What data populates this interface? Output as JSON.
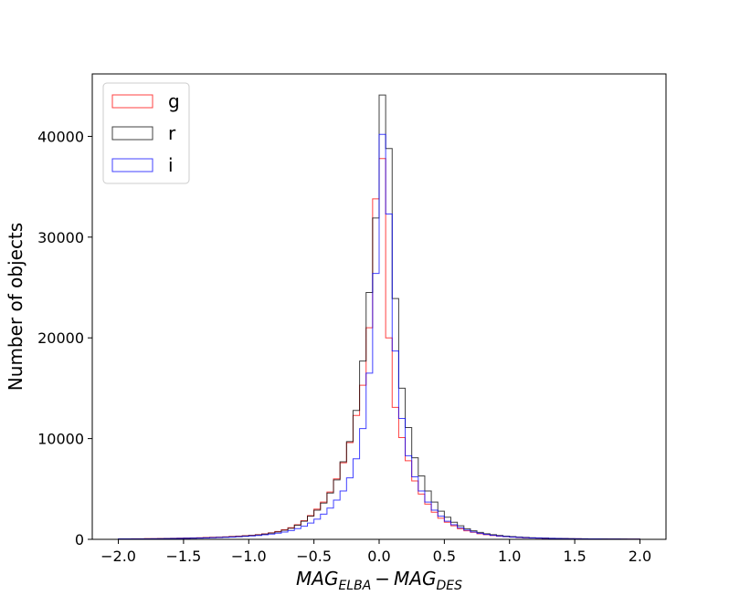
{
  "chart_data": {
    "type": "histogram",
    "xlabel": {
      "base1": "MAG",
      "sub1": "ELBA",
      "minus": "−",
      "base2": "MAG",
      "sub2": "DES"
    },
    "ylabel": "Number of objects",
    "xlim": [
      -2.2,
      2.2
    ],
    "ylim": [
      0,
      46200
    ],
    "xticks": [
      -2.0,
      -1.5,
      -1.0,
      -0.5,
      0.0,
      0.5,
      1.0,
      1.5,
      2.0
    ],
    "xtick_labels": [
      "−2.0",
      "−1.5",
      "−1.0",
      "−0.5",
      "0.0",
      "0.5",
      "1.0",
      "1.5",
      "2.0"
    ],
    "yticks": [
      0,
      10000,
      20000,
      30000,
      40000
    ],
    "ytick_labels": [
      "0",
      "10000",
      "20000",
      "30000",
      "40000"
    ],
    "bin_edges": [
      -2.0,
      -1.95,
      -1.9,
      -1.85,
      -1.8,
      -1.75,
      -1.7,
      -1.65,
      -1.6,
      -1.55,
      -1.5,
      -1.45,
      -1.4,
      -1.35,
      -1.3,
      -1.25,
      -1.2,
      -1.15,
      -1.1,
      -1.05,
      -1.0,
      -0.95,
      -0.9,
      -0.85,
      -0.8,
      -0.75,
      -0.7,
      -0.65,
      -0.6,
      -0.55,
      -0.5,
      -0.45,
      -0.4,
      -0.35,
      -0.3,
      -0.25,
      -0.2,
      -0.15,
      -0.1,
      -0.05,
      0.0,
      0.05,
      0.1,
      0.15,
      0.2,
      0.25,
      0.3,
      0.35,
      0.4,
      0.45,
      0.5,
      0.55,
      0.6,
      0.65,
      0.7,
      0.75,
      0.8,
      0.85,
      0.9,
      0.95,
      1.0,
      1.05,
      1.1,
      1.15,
      1.2,
      1.25,
      1.3,
      1.35,
      1.4,
      1.45,
      1.5,
      1.55,
      1.6,
      1.65,
      1.7,
      1.75,
      1.8,
      1.85,
      1.9,
      1.95,
      2.0
    ],
    "legend_position": "upper-left",
    "series": [
      {
        "name": "g",
        "color": "#ff0000",
        "values": [
          50,
          50,
          60,
          60,
          70,
          70,
          80,
          90,
          100,
          110,
          120,
          140,
          160,
          180,
          200,
          220,
          250,
          280,
          320,
          360,
          400,
          460,
          540,
          650,
          780,
          950,
          1150,
          1450,
          1850,
          2350,
          3000,
          3700,
          4700,
          6000,
          7600,
          9600,
          12300,
          15300,
          21000,
          33800,
          37800,
          20000,
          13100,
          10100,
          7800,
          5800,
          4500,
          3500,
          2700,
          2100,
          1700,
          1350,
          1050,
          850,
          700,
          560,
          460,
          380,
          320,
          270,
          230,
          190,
          160,
          140,
          120,
          100,
          90,
          80,
          70,
          60,
          55,
          50,
          45,
          40,
          35,
          30,
          30,
          25,
          25,
          20
        ]
      },
      {
        "name": "r",
        "color": "#000000",
        "values": [
          40,
          40,
          50,
          50,
          60,
          60,
          70,
          80,
          90,
          100,
          110,
          120,
          140,
          160,
          180,
          200,
          230,
          260,
          300,
          340,
          380,
          440,
          520,
          620,
          740,
          900,
          1100,
          1400,
          1800,
          2300,
          2900,
          3600,
          4600,
          5900,
          7700,
          9700,
          12800,
          17700,
          24500,
          31900,
          44100,
          38800,
          23900,
          15000,
          11100,
          8100,
          6300,
          4800,
          3700,
          2800,
          2200,
          1700,
          1350,
          1050,
          850,
          690,
          560,
          460,
          380,
          320,
          270,
          230,
          190,
          160,
          140,
          120,
          100,
          90,
          80,
          70,
          60,
          55,
          50,
          45,
          40,
          35,
          30,
          30,
          25,
          25
        ]
      },
      {
        "name": "i",
        "color": "#0000ff",
        "values": [
          40,
          40,
          40,
          50,
          50,
          60,
          60,
          70,
          80,
          90,
          100,
          110,
          120,
          140,
          160,
          180,
          200,
          230,
          260,
          300,
          340,
          390,
          450,
          520,
          610,
          720,
          870,
          1060,
          1300,
          1620,
          2000,
          2500,
          3100,
          3900,
          4800,
          6100,
          8000,
          11000,
          16500,
          26400,
          40200,
          32300,
          18700,
          12000,
          8300,
          6200,
          4800,
          3700,
          2900,
          2300,
          1800,
          1450,
          1150,
          920,
          740,
          600,
          490,
          400,
          330,
          270,
          230,
          190,
          160,
          140,
          120,
          100,
          90,
          80,
          70,
          60,
          55,
          50,
          45,
          40,
          35,
          30,
          30,
          25,
          25,
          20
        ]
      }
    ]
  }
}
